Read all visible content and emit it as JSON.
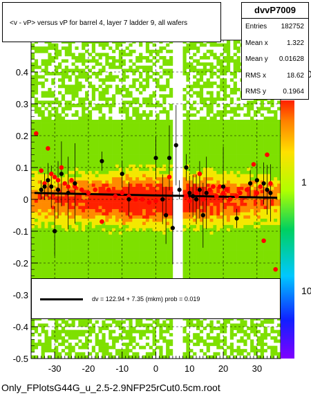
{
  "title": "<v - vP>       versus   vP for barrel 4, layer 7 ladder 9, all wafers",
  "stats": {
    "name": "dvvP7009",
    "rows": [
      {
        "label": "Entries",
        "value": "182752"
      },
      {
        "label": "Mean x",
        "value": "1.322"
      },
      {
        "label": "Mean y",
        "value": "0.01628"
      },
      {
        "label": "RMS x",
        "value": "18.62"
      },
      {
        "label": "RMS y",
        "value": "0.1964"
      }
    ]
  },
  "fit": {
    "text": "dv =  122.94 +  7.35 (mkm) prob = 0.019"
  },
  "footer": "Only_FPlotsG44G_u_2.5-2.9NFP25rCut0.5cm.root",
  "colors": {
    "green": "#7ee000",
    "yellow": "#f4e800",
    "orange": "#ff8a00",
    "red": "#ff2000",
    "marker_red": "#ff0000",
    "marker_black": "#000000"
  },
  "chart_data": {
    "type": "heatmap",
    "xlim": [
      -37,
      37
    ],
    "ylim": [
      -0.5,
      0.5
    ],
    "xticks": [
      "-30",
      "-20",
      "-10",
      "0",
      "10",
      "20",
      "30"
    ],
    "yticks": [
      "-0.5",
      "-0.4",
      "-0.3",
      "-0.2",
      "-0.1",
      "0",
      "0.1",
      "0.2",
      "0.3",
      "0.4"
    ],
    "zticks": [
      "10",
      "1",
      "10"
    ],
    "grid": true,
    "empty_band_x": [
      5,
      8.5
    ],
    "profile_red": [
      {
        "x": -35.5,
        "y": 0.207
      },
      {
        "x": -34,
        "y": 0.09
      },
      {
        "x": -33,
        "y": 0.05
      },
      {
        "x": -32,
        "y": 0.16
      },
      {
        "x": -31,
        "y": 0.08
      },
      {
        "x": -30,
        "y": 0.07
      },
      {
        "x": -29,
        "y": 0.06
      },
      {
        "x": -28,
        "y": 0.1
      },
      {
        "x": -27,
        "y": 0.05
      },
      {
        "x": -26,
        "y": 0.04
      },
      {
        "x": -25,
        "y": 0.06
      },
      {
        "x": -24,
        "y": 0.04
      },
      {
        "x": -22,
        "y": 0.03
      },
      {
        "x": -20,
        "y": 0.02
      },
      {
        "x": -18,
        "y": 0.03
      },
      {
        "x": -16,
        "y": -0.07
      },
      {
        "x": -14,
        "y": 0.03
      },
      {
        "x": -12,
        "y": 0.01
      },
      {
        "x": -10,
        "y": 0.02
      },
      {
        "x": -8,
        "y": 0.01
      },
      {
        "x": -6,
        "y": 0.0
      },
      {
        "x": -4,
        "y": 0.0
      },
      {
        "x": -2,
        "y": -0.01
      },
      {
        "x": 0,
        "y": -0.005
      },
      {
        "x": 2,
        "y": 0.0
      },
      {
        "x": 4,
        "y": 0.07
      },
      {
        "x": 9,
        "y": 0.01
      },
      {
        "x": 10,
        "y": -0.005
      },
      {
        "x": 12,
        "y": 0.02
      },
      {
        "x": 13,
        "y": 0.08
      },
      {
        "x": 14,
        "y": 0.0
      },
      {
        "x": 15,
        "y": 0.02
      },
      {
        "x": 16,
        "y": 0.03
      },
      {
        "x": 17,
        "y": 0.04
      },
      {
        "x": 18,
        "y": 0.01
      },
      {
        "x": 19,
        "y": 0.04
      },
      {
        "x": 20,
        "y": 0.02
      },
      {
        "x": 21,
        "y": 0.03
      },
      {
        "x": 22,
        "y": 0.0
      },
      {
        "x": 24,
        "y": 0.01
      },
      {
        "x": 25,
        "y": 0.02
      },
      {
        "x": 27,
        "y": 0.03
      },
      {
        "x": 29,
        "y": 0.11
      },
      {
        "x": 30,
        "y": 0.02
      },
      {
        "x": 31,
        "y": 0.04
      },
      {
        "x": 32,
        "y": -0.13
      },
      {
        "x": 33,
        "y": 0.14
      },
      {
        "x": 34,
        "y": 0.05
      },
      {
        "x": 35.5,
        "y": -0.22
      }
    ],
    "profile_black": [
      {
        "x": -34,
        "y": 0.03
      },
      {
        "x": -33,
        "y": 0.04
      },
      {
        "x": -32,
        "y": 0.06
      },
      {
        "x": -31,
        "y": 0.04
      },
      {
        "x": -30,
        "y": -0.1
      },
      {
        "x": -29,
        "y": 0.03
      },
      {
        "x": -28,
        "y": 0.08
      },
      {
        "x": -26,
        "y": 0.02
      },
      {
        "x": -24,
        "y": 0.05
      },
      {
        "x": -16,
        "y": 0.12
      },
      {
        "x": -10,
        "y": 0.08
      },
      {
        "x": -8,
        "y": 0.0
      },
      {
        "x": 0,
        "y": 0.13
      },
      {
        "x": 2,
        "y": 0.0
      },
      {
        "x": 3,
        "y": -0.05
      },
      {
        "x": 4,
        "y": 0.13
      },
      {
        "x": 5,
        "y": -0.09
      },
      {
        "x": 6,
        "y": 0.17
      },
      {
        "x": 7,
        "y": 0.03
      },
      {
        "x": 9,
        "y": 0.1
      },
      {
        "x": 10,
        "y": 0.02
      },
      {
        "x": 11,
        "y": 0.01
      },
      {
        "x": 12,
        "y": 0.0
      },
      {
        "x": 13,
        "y": 0.03
      },
      {
        "x": 14,
        "y": -0.05
      },
      {
        "x": 15,
        "y": 0.02
      },
      {
        "x": 20,
        "y": 0.04
      },
      {
        "x": 24,
        "y": -0.06
      },
      {
        "x": 28,
        "y": 0.05
      },
      {
        "x": 30,
        "y": 0.06
      },
      {
        "x": 32,
        "y": 0.05
      },
      {
        "x": 33,
        "y": 0.03
      },
      {
        "x": 34,
        "y": 0.02
      }
    ],
    "fit_line": {
      "x": [
        -36,
        36
      ],
      "y": [
        0.02,
        0.005
      ]
    }
  }
}
